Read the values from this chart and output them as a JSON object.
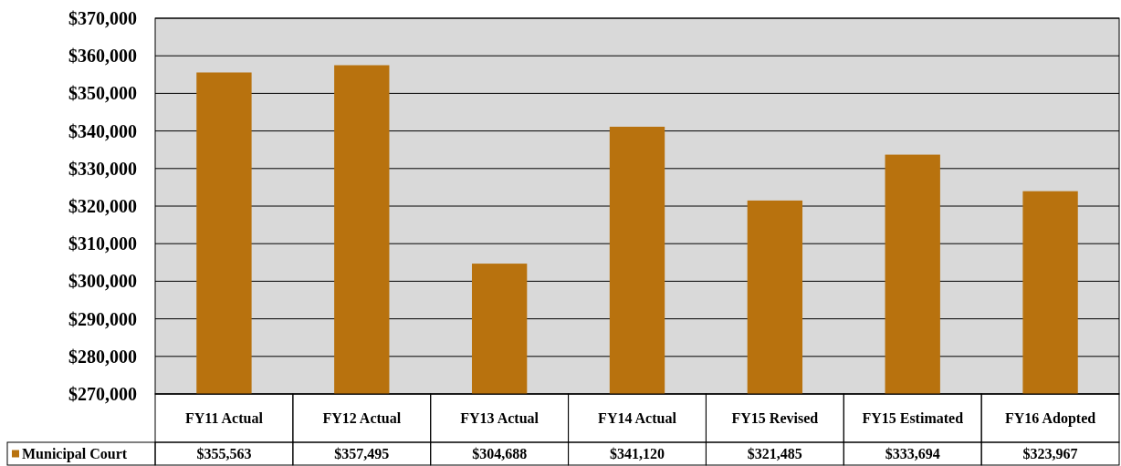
{
  "chart_data": {
    "type": "bar",
    "categories": [
      "FY11 Actual",
      "FY12 Actual",
      "FY13 Actual",
      "FY14 Actual",
      "FY15 Revised",
      "FY15 Estimated",
      "FY16 Adopted"
    ],
    "series": [
      {
        "name": "Municipal Court",
        "color": "#b8720e",
        "values": [
          355563,
          357495,
          304688,
          341120,
          321485,
          333694,
          323967
        ],
        "value_labels": [
          "$355,563",
          "$357,495",
          "$304,688",
          "$341,120",
          "$321,485",
          "$333,694",
          "$323,967"
        ]
      }
    ],
    "ylim": [
      270000,
      370000
    ],
    "yticks": [
      {
        "value": 270000,
        "label": "$270,000"
      },
      {
        "value": 280000,
        "label": "$280,000"
      },
      {
        "value": 290000,
        "label": "$290,000"
      },
      {
        "value": 300000,
        "label": "$300,000"
      },
      {
        "value": 310000,
        "label": "$310,000"
      },
      {
        "value": 320000,
        "label": "$320,000"
      },
      {
        "value": 330000,
        "label": "$330,000"
      },
      {
        "value": 340000,
        "label": "$340,000"
      },
      {
        "value": 350000,
        "label": "$350,000"
      },
      {
        "value": 360000,
        "label": "$360,000"
      },
      {
        "value": 370000,
        "label": "$370,000"
      }
    ],
    "grid": "y",
    "legend": "bottom left"
  }
}
